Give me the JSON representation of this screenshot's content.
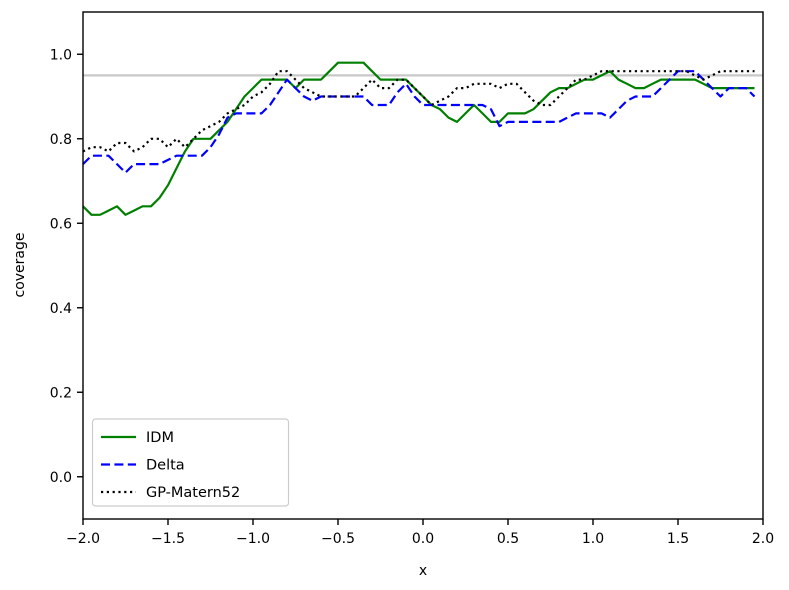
{
  "chart_data": {
    "type": "line",
    "title": "",
    "xlabel": "x",
    "ylabel": "coverage",
    "xlim": [
      -2.0,
      2.0
    ],
    "ylim": [
      -0.1,
      1.1
    ],
    "grid": false,
    "xticks": [
      -2.0,
      -1.5,
      -1.0,
      -0.5,
      0.0,
      0.5,
      1.0,
      1.5,
      2.0
    ],
    "xtick_labels": [
      "−2.0",
      "−1.5",
      "−1.0",
      "−0.5",
      "0.0",
      "0.5",
      "1.0",
      "1.5",
      "2.0"
    ],
    "yticks": [
      0.0,
      0.2,
      0.4,
      0.6,
      0.8,
      1.0
    ],
    "ytick_labels": [
      "0.0",
      "0.2",
      "0.4",
      "0.6",
      "0.8",
      "1.0"
    ],
    "reference_line": {
      "y": 0.95,
      "color": "#c8c8c8"
    },
    "legend_position": "lower left",
    "x": [
      -2.0,
      -1.95,
      -1.9,
      -1.85,
      -1.8,
      -1.75,
      -1.7,
      -1.65,
      -1.6,
      -1.55,
      -1.5,
      -1.45,
      -1.4,
      -1.35,
      -1.3,
      -1.25,
      -1.2,
      -1.15,
      -1.1,
      -1.05,
      -1.0,
      -0.95,
      -0.9,
      -0.85,
      -0.8,
      -0.75,
      -0.7,
      -0.65,
      -0.6,
      -0.55,
      -0.5,
      -0.45,
      -0.4,
      -0.35,
      -0.3,
      -0.25,
      -0.2,
      -0.15,
      -0.1,
      -0.05,
      0.0,
      0.05,
      0.1,
      0.15,
      0.2,
      0.25,
      0.3,
      0.35,
      0.4,
      0.45,
      0.5,
      0.55,
      0.6,
      0.65,
      0.7,
      0.75,
      0.8,
      0.85,
      0.9,
      0.95,
      1.0,
      1.05,
      1.1,
      1.15,
      1.2,
      1.25,
      1.3,
      1.35,
      1.4,
      1.45,
      1.5,
      1.55,
      1.6,
      1.65,
      1.7,
      1.75,
      1.8,
      1.85,
      1.9,
      1.95
    ],
    "series": [
      {
        "name": "IDM",
        "color": "#008000",
        "style": "solid",
        "values": [
          0.64,
          0.62,
          0.62,
          0.63,
          0.64,
          0.62,
          0.63,
          0.64,
          0.64,
          0.66,
          0.69,
          0.73,
          0.77,
          0.8,
          0.8,
          0.8,
          0.82,
          0.84,
          0.87,
          0.9,
          0.92,
          0.94,
          0.94,
          0.94,
          0.94,
          0.92,
          0.94,
          0.94,
          0.94,
          0.96,
          0.98,
          0.98,
          0.98,
          0.98,
          0.96,
          0.94,
          0.94,
          0.94,
          0.94,
          0.92,
          0.9,
          0.88,
          0.87,
          0.85,
          0.84,
          0.86,
          0.88,
          0.86,
          0.84,
          0.84,
          0.86,
          0.86,
          0.86,
          0.87,
          0.89,
          0.91,
          0.92,
          0.92,
          0.93,
          0.94,
          0.94,
          0.95,
          0.96,
          0.94,
          0.93,
          0.92,
          0.92,
          0.93,
          0.94,
          0.94,
          0.94,
          0.94,
          0.94,
          0.93,
          0.92,
          0.92,
          0.92,
          0.92,
          0.92,
          0.92
        ]
      },
      {
        "name": "Delta",
        "color": "#0000ff",
        "style": "dashed",
        "values": [
          0.74,
          0.76,
          0.76,
          0.76,
          0.74,
          0.72,
          0.74,
          0.74,
          0.74,
          0.74,
          0.75,
          0.76,
          0.76,
          0.76,
          0.76,
          0.78,
          0.81,
          0.85,
          0.86,
          0.86,
          0.86,
          0.86,
          0.88,
          0.91,
          0.94,
          0.92,
          0.9,
          0.89,
          0.9,
          0.9,
          0.9,
          0.9,
          0.9,
          0.9,
          0.88,
          0.88,
          0.88,
          0.91,
          0.93,
          0.9,
          0.88,
          0.88,
          0.88,
          0.88,
          0.88,
          0.88,
          0.88,
          0.88,
          0.87,
          0.83,
          0.84,
          0.84,
          0.84,
          0.84,
          0.84,
          0.84,
          0.84,
          0.85,
          0.86,
          0.86,
          0.86,
          0.86,
          0.85,
          0.87,
          0.89,
          0.9,
          0.9,
          0.9,
          0.92,
          0.94,
          0.96,
          0.96,
          0.96,
          0.94,
          0.92,
          0.9,
          0.92,
          0.92,
          0.92,
          0.9
        ]
      },
      {
        "name": "GP-Matern52",
        "color": "#000000",
        "style": "dotted",
        "values": [
          0.77,
          0.78,
          0.78,
          0.77,
          0.79,
          0.79,
          0.77,
          0.78,
          0.8,
          0.8,
          0.78,
          0.8,
          0.78,
          0.8,
          0.82,
          0.83,
          0.84,
          0.86,
          0.87,
          0.88,
          0.9,
          0.91,
          0.93,
          0.96,
          0.96,
          0.94,
          0.92,
          0.91,
          0.9,
          0.9,
          0.9,
          0.9,
          0.9,
          0.92,
          0.94,
          0.92,
          0.92,
          0.94,
          0.94,
          0.92,
          0.9,
          0.88,
          0.89,
          0.9,
          0.92,
          0.92,
          0.93,
          0.93,
          0.93,
          0.92,
          0.93,
          0.93,
          0.91,
          0.89,
          0.88,
          0.88,
          0.9,
          0.92,
          0.94,
          0.94,
          0.95,
          0.96,
          0.96,
          0.96,
          0.96,
          0.96,
          0.96,
          0.96,
          0.96,
          0.96,
          0.96,
          0.96,
          0.95,
          0.94,
          0.95,
          0.96,
          0.96,
          0.96,
          0.96,
          0.96
        ]
      }
    ]
  }
}
